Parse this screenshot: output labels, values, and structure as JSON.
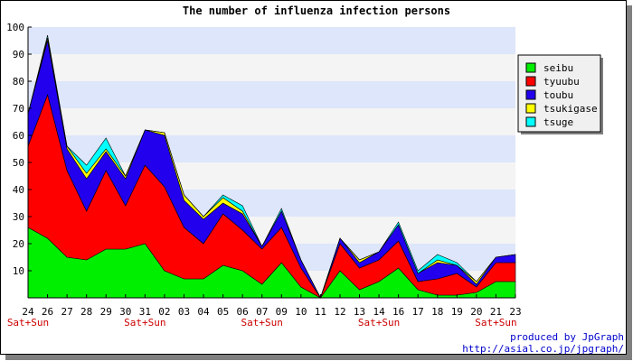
{
  "chart_data": {
    "type": "area",
    "stacked": true,
    "title": "The number of influenza infection persons",
    "xlabel": "",
    "ylabel": "",
    "ylim": [
      0,
      100
    ],
    "yticks": [
      10,
      20,
      30,
      40,
      50,
      60,
      70,
      80,
      90,
      100
    ],
    "grid": "horizontal bands",
    "legend_position": "right",
    "band_colors": [
      "#dde6fa",
      "#f4f4f4"
    ],
    "categories": [
      "24",
      "26",
      "27",
      "28",
      "29",
      "30",
      "31",
      "02",
      "03",
      "04",
      "05",
      "06",
      "07",
      "09",
      "10",
      "11",
      "12",
      "13",
      "14",
      "16",
      "17",
      "18",
      "19",
      "20",
      "21",
      "23"
    ],
    "weekend_label": "Sat+Sun",
    "weekend_indices": [
      0,
      6,
      12,
      18,
      24
    ],
    "series": [
      {
        "name": "seibu",
        "color": "#00ee00",
        "values": [
          26,
          22,
          15,
          14,
          18,
          18,
          20,
          10,
          7,
          7,
          12,
          10,
          5,
          13,
          4,
          0,
          10,
          3,
          6,
          11,
          3,
          1,
          1,
          2,
          6,
          6
        ]
      },
      {
        "name": "tyuubu",
        "color": "#ff0000",
        "values": [
          30,
          53,
          32,
          18,
          29,
          16,
          29,
          31,
          19,
          13,
          19,
          15,
          13,
          13,
          7,
          0,
          10,
          8,
          8,
          10,
          3,
          6,
          8,
          2,
          7,
          7
        ]
      },
      {
        "name": "toubu",
        "color": "#2200ee",
        "values": [
          12,
          20,
          8,
          12,
          7,
          10,
          13,
          19,
          10,
          9,
          4,
          6,
          1,
          6,
          3,
          0,
          2,
          2,
          3,
          6,
          3,
          6,
          3,
          1,
          2,
          3
        ]
      },
      {
        "name": "tsukigase",
        "color": "#ffff00",
        "values": [
          0,
          1,
          1,
          2,
          1,
          1,
          0,
          1,
          2,
          1,
          2,
          1,
          0,
          0,
          0,
          0,
          0,
          1,
          0,
          0,
          0,
          1,
          0,
          1,
          0,
          0
        ]
      },
      {
        "name": "tsuge",
        "color": "#00ffff",
        "values": [
          0,
          1,
          0,
          3,
          4,
          0,
          0,
          0,
          0,
          0,
          1,
          2,
          0,
          1,
          0,
          0,
          0,
          0,
          0,
          1,
          1,
          2,
          1,
          0,
          0,
          0
        ]
      }
    ]
  },
  "credit": {
    "line1": "produced by JpGraph",
    "line2": "http://asial.co.jp/jpgraph/"
  }
}
